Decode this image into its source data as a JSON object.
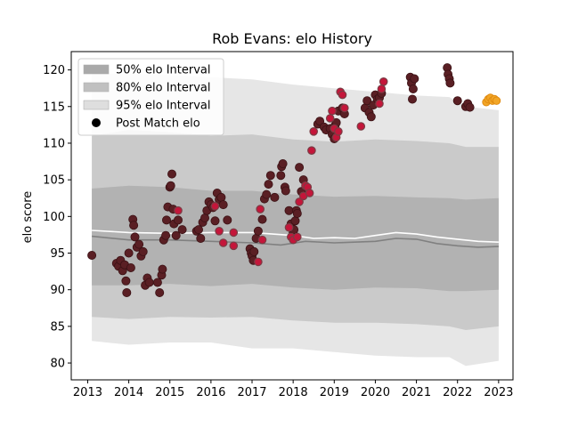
{
  "chart_data": {
    "type": "scatter",
    "title": "Rob Evans: elo History",
    "xlabel": "",
    "ylabel": "elo score",
    "xlim": [
      2012.6,
      2023.35
    ],
    "ylim": [
      77.7,
      122.5
    ],
    "x_ticks": [
      2013,
      2014,
      2015,
      2016,
      2017,
      2018,
      2019,
      2020,
      2021,
      2022,
      2023
    ],
    "x_tick_labels": [
      "2013",
      "2014",
      "2015",
      "2016",
      "2017",
      "2018",
      "2019",
      "2020",
      "2021",
      "2022",
      "2023"
    ],
    "y_ticks": [
      80,
      85,
      90,
      95,
      100,
      105,
      110,
      115,
      120
    ],
    "y_tick_labels": [
      "80",
      "85",
      "90",
      "95",
      "100",
      "105",
      "110",
      "115",
      "120"
    ],
    "legend_position": "top-left",
    "legend": [
      {
        "label": "50% elo Interval",
        "kind": "band",
        "color": "#a9a9a9"
      },
      {
        "label": "80% elo Interval",
        "kind": "band",
        "color": "#c0c0c0"
      },
      {
        "label": "95% elo Interval",
        "kind": "band",
        "color": "#dedede"
      },
      {
        "label": "Post Match elo",
        "kind": "marker",
        "color": "#000000"
      }
    ],
    "bands": {
      "x": [
        2013.1,
        2014.0,
        2015.0,
        2016.0,
        2017.0,
        2018.0,
        2019.0,
        2020.0,
        2021.0,
        2021.8,
        2022.2,
        2023.0
      ],
      "p95_upper": [
        119.5,
        119.5,
        119.3,
        119.0,
        118.7,
        118.0,
        117.5,
        117.0,
        116.5,
        116.3,
        115.0,
        114.5
      ],
      "p80_upper": [
        111.0,
        111.8,
        111.5,
        111.0,
        111.2,
        110.5,
        110.2,
        110.5,
        110.3,
        110.0,
        109.5,
        109.5
      ],
      "p50_upper": [
        103.8,
        104.2,
        104.0,
        103.5,
        103.5,
        103.0,
        102.7,
        102.8,
        102.6,
        102.5,
        102.3,
        102.5
      ],
      "p50_lower": [
        90.6,
        90.6,
        90.8,
        90.5,
        90.8,
        90.3,
        90.0,
        90.3,
        90.2,
        89.8,
        89.8,
        90.0
      ],
      "p80_lower": [
        86.3,
        86.0,
        86.3,
        86.2,
        86.3,
        85.8,
        85.5,
        85.5,
        85.3,
        85.0,
        84.5,
        85.0
      ],
      "p95_lower": [
        83.0,
        82.5,
        82.8,
        82.8,
        82.0,
        82.0,
        81.5,
        81.0,
        80.8,
        80.8,
        79.6,
        80.3
      ]
    },
    "lines": [
      {
        "color": "#ffffff",
        "x": [
          2013.1,
          2014.0,
          2015.0,
          2016.0,
          2017.0,
          2018.0,
          2018.5,
          2019.0,
          2019.5,
          2020.0,
          2020.5,
          2021.0,
          2021.5,
          2022.0,
          2022.5,
          2023.0
        ],
        "y": [
          98.1,
          97.8,
          97.7,
          97.8,
          97.8,
          97.4,
          97.0,
          97.1,
          97.0,
          97.4,
          97.8,
          97.6,
          97.2,
          96.9,
          96.6,
          96.5
        ]
      },
      {
        "color": "#808080",
        "x": [
          2013.1,
          2014.0,
          2015.0,
          2016.0,
          2017.0,
          2017.7,
          2018.3,
          2019.0,
          2020.0,
          2020.5,
          2021.0,
          2021.5,
          2022.0,
          2022.5,
          2023.0
        ],
        "y": [
          97.3,
          96.8,
          96.8,
          96.6,
          96.4,
          96.1,
          96.6,
          96.4,
          96.6,
          97.0,
          96.9,
          96.3,
          96.0,
          95.8,
          95.9
        ]
      }
    ],
    "points_dark": [
      [
        2013.1,
        94.7
      ],
      [
        2013.7,
        93.6
      ],
      [
        2013.75,
        93.2
      ],
      [
        2013.8,
        94.0
      ],
      [
        2013.85,
        92.6
      ],
      [
        2013.9,
        93.4
      ],
      [
        2013.93,
        91.2
      ],
      [
        2013.95,
        89.6
      ],
      [
        2014.0,
        95.0
      ],
      [
        2014.05,
        93.0
      ],
      [
        2014.1,
        99.6
      ],
      [
        2014.12,
        98.8
      ],
      [
        2014.15,
        97.2
      ],
      [
        2014.2,
        95.8
      ],
      [
        2014.25,
        96.2
      ],
      [
        2014.3,
        94.6
      ],
      [
        2014.35,
        95.2
      ],
      [
        2014.4,
        90.6
      ],
      [
        2014.45,
        91.6
      ],
      [
        2014.5,
        91.0
      ],
      [
        2014.7,
        91.0
      ],
      [
        2014.75,
        89.6
      ],
      [
        2014.8,
        92.0
      ],
      [
        2014.82,
        92.8
      ],
      [
        2014.85,
        96.8
      ],
      [
        2014.9,
        97.4
      ],
      [
        2014.92,
        99.5
      ],
      [
        2014.95,
        101.3
      ],
      [
        2015.0,
        104.0
      ],
      [
        2015.02,
        104.2
      ],
      [
        2015.05,
        105.8
      ],
      [
        2015.08,
        101.0
      ],
      [
        2015.1,
        99.0
      ],
      [
        2015.15,
        97.4
      ],
      [
        2015.2,
        99.5
      ],
      [
        2015.3,
        98.2
      ],
      [
        2015.65,
        98.0
      ],
      [
        2015.7,
        98.2
      ],
      [
        2015.75,
        97.0
      ],
      [
        2015.8,
        99.2
      ],
      [
        2015.85,
        99.8
      ],
      [
        2015.9,
        100.8
      ],
      [
        2015.95,
        102.0
      ],
      [
        2016.0,
        101.6
      ],
      [
        2016.05,
        101.2
      ],
      [
        2016.1,
        99.4
      ],
      [
        2016.15,
        103.2
      ],
      [
        2016.2,
        102.3
      ],
      [
        2016.25,
        102.6
      ],
      [
        2016.3,
        101.6
      ],
      [
        2016.4,
        99.5
      ],
      [
        2016.95,
        95.6
      ],
      [
        2016.98,
        95.0
      ],
      [
        2017.0,
        94.6
      ],
      [
        2017.03,
        94.0
      ],
      [
        2017.05,
        95.2
      ],
      [
        2017.1,
        97.0
      ],
      [
        2017.15,
        98.0
      ],
      [
        2017.25,
        99.6
      ],
      [
        2017.3,
        102.4
      ],
      [
        2017.35,
        103.0
      ],
      [
        2017.4,
        104.4
      ],
      [
        2017.45,
        105.6
      ],
      [
        2017.55,
        102.6
      ],
      [
        2017.7,
        105.6
      ],
      [
        2017.72,
        106.8
      ],
      [
        2017.75,
        107.2
      ],
      [
        2017.8,
        104.0
      ],
      [
        2017.82,
        103.5
      ],
      [
        2017.9,
        100.8
      ],
      [
        2017.95,
        99.0
      ],
      [
        2018.0,
        97.8
      ],
      [
        2018.02,
        98.2
      ],
      [
        2018.05,
        99.4
      ],
      [
        2018.08,
        100.8
      ],
      [
        2018.1,
        100.4
      ],
      [
        2018.15,
        106.7
      ],
      [
        2018.2,
        103.4
      ],
      [
        2018.25,
        105.0
      ],
      [
        2018.6,
        112.6
      ],
      [
        2018.65,
        113.0
      ],
      [
        2018.75,
        112.2
      ],
      [
        2018.8,
        111.8
      ],
      [
        2018.9,
        112.0
      ],
      [
        2018.95,
        111.2
      ],
      [
        2019.0,
        110.6
      ],
      [
        2019.02,
        112.4
      ],
      [
        2019.05,
        112.8
      ],
      [
        2019.1,
        114.4
      ],
      [
        2019.2,
        114.8
      ],
      [
        2019.25,
        114.0
      ],
      [
        2019.75,
        114.8
      ],
      [
        2019.8,
        115.8
      ],
      [
        2019.85,
        114.2
      ],
      [
        2019.9,
        113.6
      ],
      [
        2019.95,
        115.2
      ],
      [
        2020.0,
        116.6
      ],
      [
        2020.05,
        116.0
      ],
      [
        2020.1,
        116.2
      ],
      [
        2020.15,
        116.8
      ],
      [
        2020.85,
        119.0
      ],
      [
        2020.88,
        118.2
      ],
      [
        2020.9,
        116.0
      ],
      [
        2020.92,
        117.4
      ],
      [
        2020.95,
        118.8
      ],
      [
        2021.75,
        120.3
      ],
      [
        2021.77,
        119.4
      ],
      [
        2021.8,
        118.8
      ],
      [
        2021.82,
        118.2
      ],
      [
        2022.0,
        115.8
      ],
      [
        2022.2,
        115.0
      ],
      [
        2022.25,
        115.4
      ],
      [
        2022.3,
        114.9
      ]
    ],
    "points_red": [
      [
        2015.2,
        100.8
      ],
      [
        2016.1,
        101.4
      ],
      [
        2016.2,
        98.0
      ],
      [
        2016.3,
        96.4
      ],
      [
        2016.55,
        97.8
      ],
      [
        2016.55,
        96.0
      ],
      [
        2017.15,
        93.8
      ],
      [
        2017.2,
        101.0
      ],
      [
        2017.25,
        96.8
      ],
      [
        2017.9,
        98.5
      ],
      [
        2017.95,
        97.2
      ],
      [
        2018.0,
        96.8
      ],
      [
        2018.1,
        97.2
      ],
      [
        2018.15,
        102.0
      ],
      [
        2018.25,
        102.8
      ],
      [
        2018.3,
        104.2
      ],
      [
        2018.35,
        104.0
      ],
      [
        2018.4,
        103.2
      ],
      [
        2018.45,
        109.0
      ],
      [
        2018.5,
        111.6
      ],
      [
        2018.9,
        113.4
      ],
      [
        2018.95,
        114.4
      ],
      [
        2019.0,
        112.0
      ],
      [
        2019.05,
        110.8
      ],
      [
        2019.1,
        111.6
      ],
      [
        2019.15,
        117.0
      ],
      [
        2019.2,
        116.6
      ],
      [
        2019.25,
        114.8
      ],
      [
        2019.65,
        112.3
      ],
      [
        2020.1,
        115.4
      ],
      [
        2020.15,
        117.4
      ],
      [
        2020.2,
        118.4
      ]
    ],
    "points_orange": [
      [
        2022.7,
        115.6
      ],
      [
        2022.75,
        116.0
      ],
      [
        2022.8,
        116.2
      ],
      [
        2022.85,
        115.8
      ],
      [
        2022.9,
        116.0
      ],
      [
        2022.95,
        115.8
      ]
    ]
  }
}
